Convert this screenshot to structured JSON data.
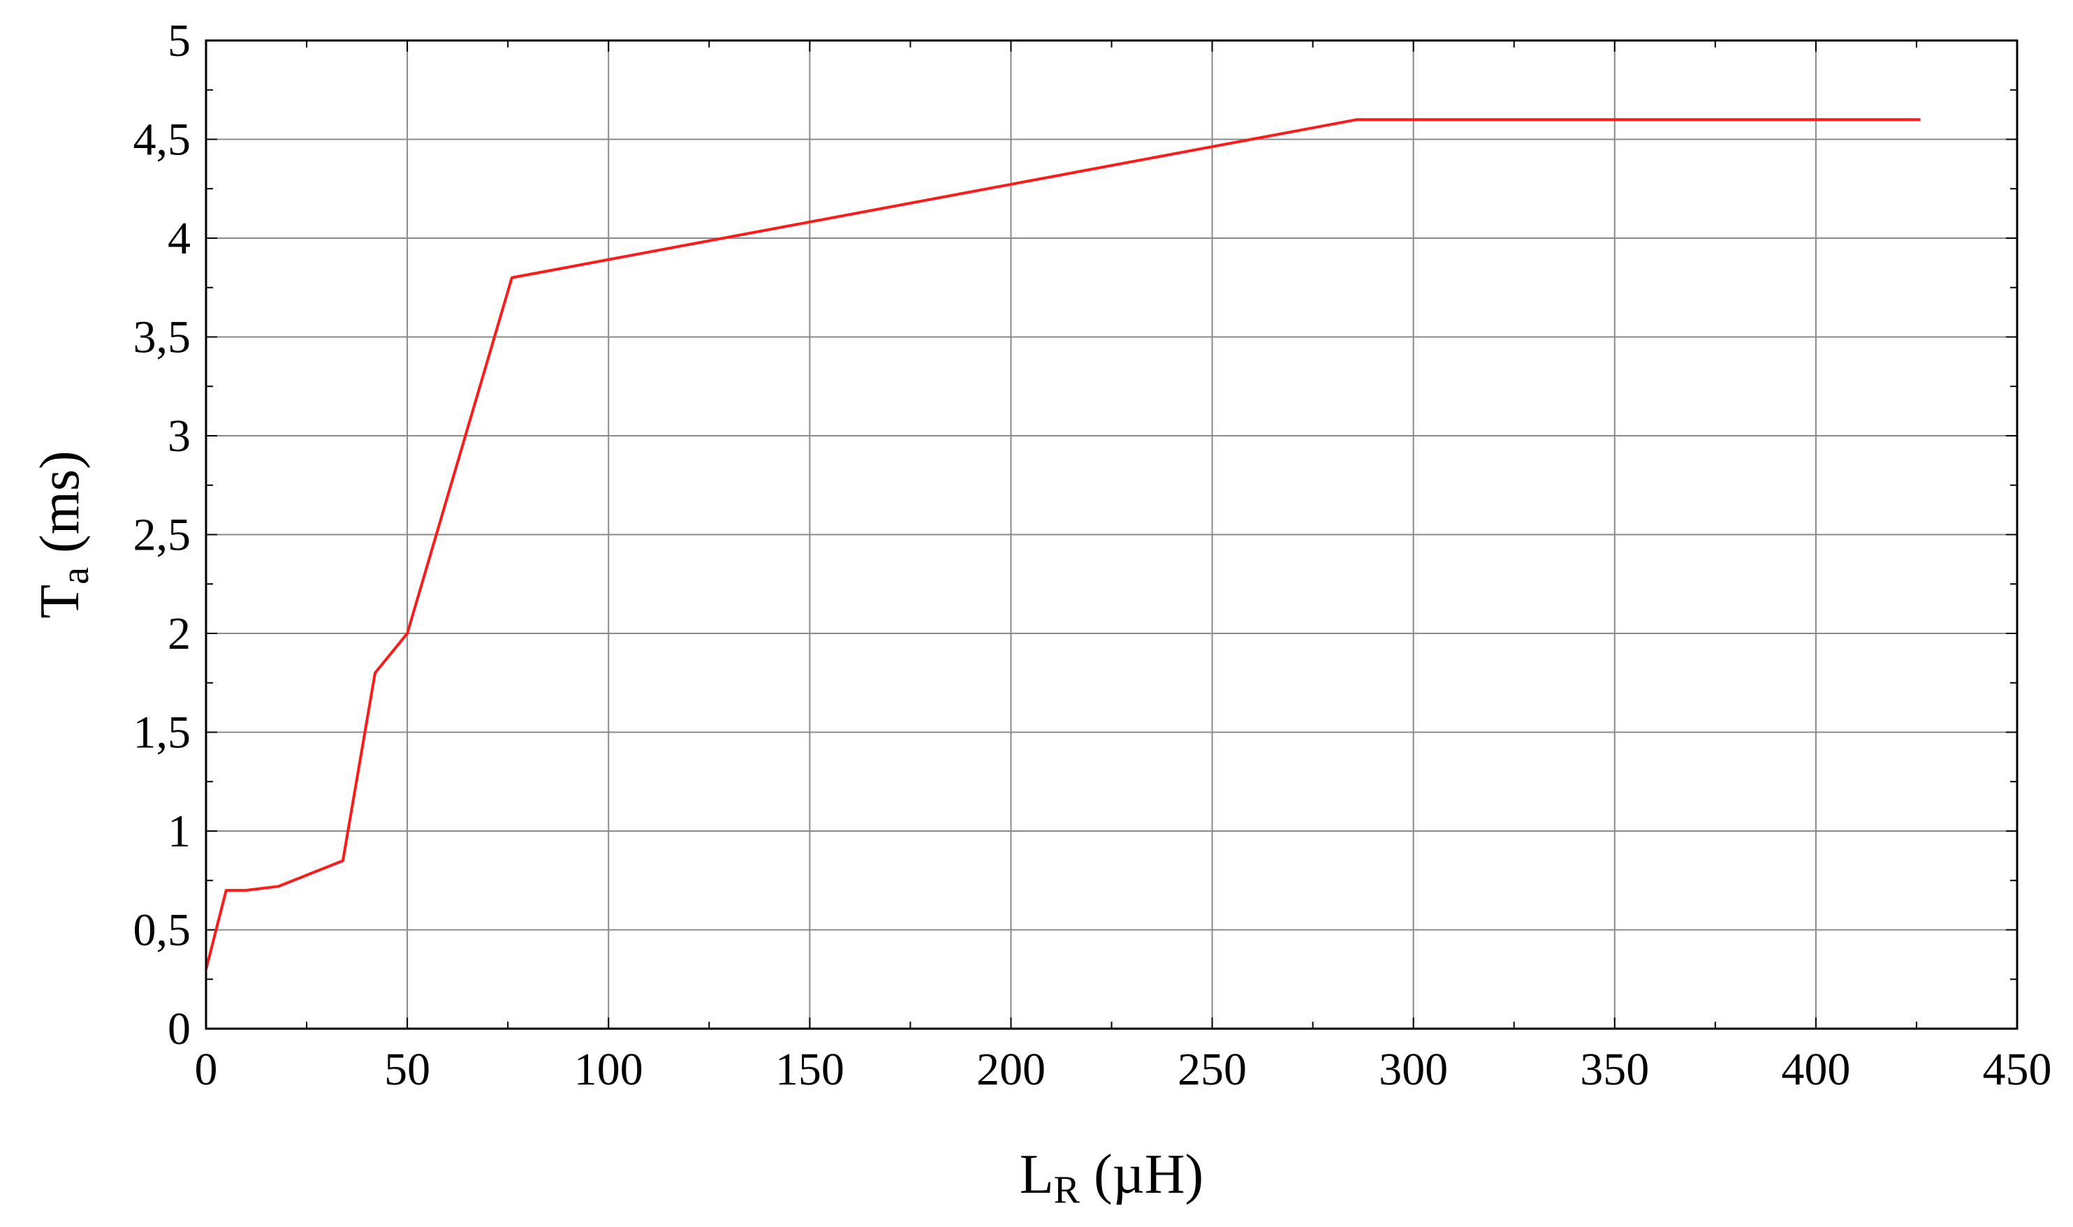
{
  "chart_data": {
    "type": "line",
    "title": "",
    "xlabel": {
      "main": "L",
      "sub": "R",
      "unit": " (µH)"
    },
    "ylabel": {
      "main": "T",
      "sub": "a",
      "unit": " (ms)"
    },
    "xlim": [
      0,
      450
    ],
    "ylim": [
      0,
      5
    ],
    "x_ticks": [
      0,
      50,
      100,
      150,
      200,
      250,
      300,
      350,
      400,
      450
    ],
    "x_tick_labels": [
      "0",
      "50",
      "100",
      "150",
      "200",
      "250",
      "300",
      "350",
      "400",
      "450"
    ],
    "y_ticks": [
      0,
      0.5,
      1,
      1.5,
      2,
      2.5,
      3,
      3.5,
      4,
      4.5,
      5
    ],
    "y_tick_labels": [
      "0",
      "0,5",
      "1",
      "1,5",
      "2",
      "2,5",
      "3",
      "3,5",
      "4",
      "4,5",
      "5"
    ],
    "grid": true,
    "minor_ticks": true,
    "series": [
      {
        "color": "#ff1a1a",
        "x": [
          0,
          5,
          10,
          18,
          34,
          42,
          50,
          76,
          286,
          426
        ],
        "y": [
          0.3,
          0.7,
          0.7,
          0.72,
          0.85,
          1.8,
          2.0,
          3.8,
          4.6,
          4.6
        ]
      }
    ]
  }
}
